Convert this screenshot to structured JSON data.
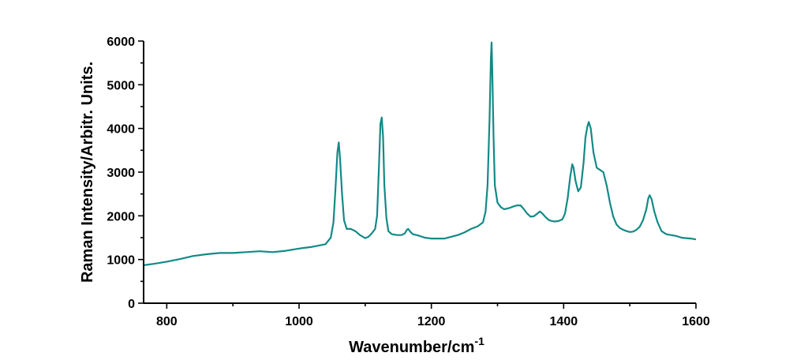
{
  "chart_data": {
    "type": "line",
    "xlabel": "Wavenumber/cm",
    "xlabel_superscript": "-1",
    "ylabel": "Raman Intensity/Arbitr. Units.",
    "xlim": [
      765,
      1600
    ],
    "ylim": [
      0,
      6000
    ],
    "xticks": [
      "800",
      "1000",
      "1200",
      "1400",
      "1600"
    ],
    "yticks": [
      "0",
      "1000",
      "2000",
      "3000",
      "4000",
      "5000",
      "6000"
    ],
    "grid": false,
    "color": "#138a86",
    "series": [
      {
        "x": [
          765,
          780,
          800,
          820,
          840,
          860,
          880,
          900,
          920,
          940,
          960,
          980,
          1000,
          1020,
          1040,
          1048,
          1052,
          1055,
          1058,
          1060,
          1062,
          1065,
          1068,
          1072,
          1078,
          1085,
          1092,
          1100,
          1105,
          1110,
          1115,
          1118,
          1121,
          1123,
          1125,
          1127,
          1129,
          1132,
          1135,
          1140,
          1148,
          1155,
          1160,
          1163,
          1165,
          1168,
          1172,
          1180,
          1190,
          1200,
          1220,
          1240,
          1250,
          1260,
          1270,
          1278,
          1282,
          1285,
          1288,
          1290,
          1291,
          1292,
          1294,
          1296,
          1300,
          1305,
          1310,
          1318,
          1325,
          1330,
          1335,
          1340,
          1345,
          1350,
          1355,
          1360,
          1364,
          1368,
          1372,
          1378,
          1385,
          1392,
          1398,
          1402,
          1406,
          1410,
          1413,
          1415,
          1418,
          1422,
          1426,
          1430,
          1433,
          1436,
          1438,
          1441,
          1445,
          1450,
          1455,
          1460,
          1465,
          1470,
          1475,
          1480,
          1485,
          1490,
          1495,
          1500,
          1505,
          1510,
          1515,
          1520,
          1525,
          1528,
          1530,
          1533,
          1537,
          1542,
          1548,
          1555,
          1562,
          1570,
          1578,
          1585,
          1592,
          1600
        ],
        "y": [
          870,
          900,
          950,
          1010,
          1080,
          1120,
          1150,
          1150,
          1170,
          1190,
          1170,
          1200,
          1250,
          1290,
          1350,
          1500,
          1850,
          2600,
          3450,
          3680,
          3300,
          2500,
          1900,
          1700,
          1700,
          1650,
          1560,
          1490,
          1520,
          1600,
          1700,
          2000,
          3200,
          4100,
          4250,
          3800,
          2700,
          1950,
          1650,
          1580,
          1560,
          1560,
          1600,
          1680,
          1700,
          1640,
          1580,
          1550,
          1500,
          1480,
          1480,
          1560,
          1620,
          1700,
          1760,
          1850,
          2100,
          2700,
          4200,
          5600,
          5970,
          5400,
          3800,
          2700,
          2300,
          2200,
          2150,
          2180,
          2220,
          2240,
          2240,
          2150,
          2050,
          1980,
          1990,
          2050,
          2100,
          2050,
          1980,
          1900,
          1870,
          1880,
          1920,
          2050,
          2400,
          2900,
          3180,
          3100,
          2800,
          2560,
          2650,
          3200,
          3800,
          4050,
          4150,
          4000,
          3450,
          3100,
          3050,
          3000,
          2700,
          2300,
          1980,
          1800,
          1720,
          1680,
          1650,
          1630,
          1640,
          1680,
          1750,
          1900,
          2150,
          2400,
          2470,
          2380,
          2100,
          1850,
          1650,
          1580,
          1560,
          1540,
          1500,
          1490,
          1480,
          1460
        ]
      }
    ]
  }
}
